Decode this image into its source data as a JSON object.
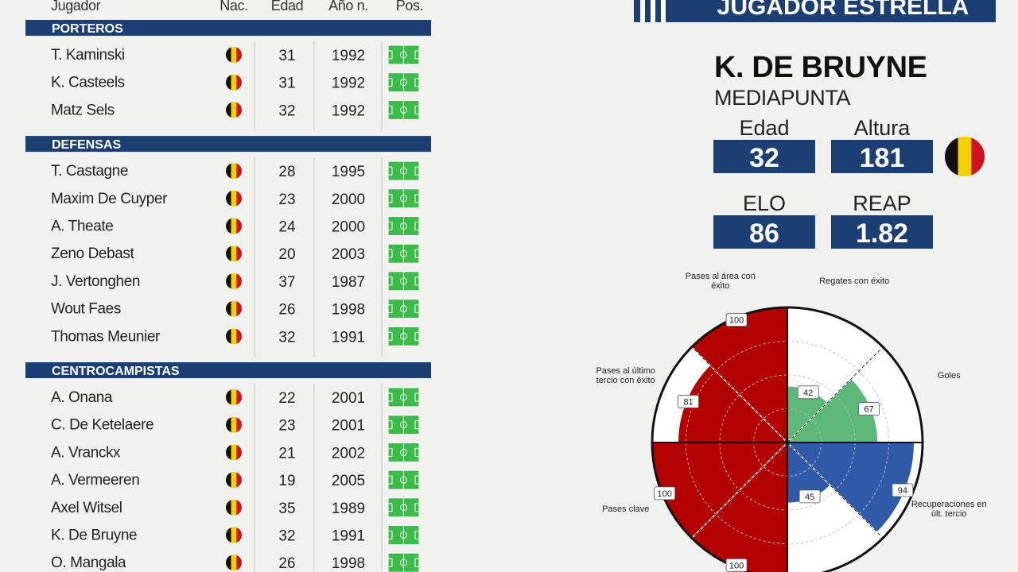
{
  "table": {
    "columns": [
      "Jugador",
      "Nac.",
      "Edad",
      "Año n.",
      "Pos."
    ],
    "sections": [
      {
        "title": "PORTEROS",
        "rows": [
          {
            "name": "T. Kaminski",
            "age": 31,
            "born": 1992
          },
          {
            "name": "K. Casteels",
            "age": 31,
            "born": 1992
          },
          {
            "name": "Matz Sels",
            "age": 32,
            "born": 1992
          }
        ]
      },
      {
        "title": "DEFENSAS",
        "rows": [
          {
            "name": "T. Castagne",
            "age": 28,
            "born": 1995
          },
          {
            "name": "Maxim De Cuyper",
            "age": 23,
            "born": 2000
          },
          {
            "name": "A. Theate",
            "age": 24,
            "born": 2000
          },
          {
            "name": "Zeno Debast",
            "age": 20,
            "born": 2003
          },
          {
            "name": "J. Vertonghen",
            "age": 37,
            "born": 1987
          },
          {
            "name": "Wout Faes",
            "age": 26,
            "born": 1998
          },
          {
            "name": "Thomas Meunier",
            "age": 32,
            "born": 1991
          }
        ]
      },
      {
        "title": "CENTROCAMPISTAS",
        "rows": [
          {
            "name": "A. Onana",
            "age": 22,
            "born": 2001
          },
          {
            "name": "C. De Ketelaere",
            "age": 23,
            "born": 2001
          },
          {
            "name": "A. Vranckx",
            "age": 21,
            "born": 2002
          },
          {
            "name": "A. Vermeeren",
            "age": 19,
            "born": 2005
          },
          {
            "name": "Axel Witsel",
            "age": 35,
            "born": 1989
          },
          {
            "name": "K. De Bruyne",
            "age": 32,
            "born": 1991
          },
          {
            "name": "O. Mangala",
            "age": 26,
            "born": 1998
          }
        ]
      }
    ]
  },
  "star": {
    "banner": "JUGADOR ESTRELLA",
    "name": "K. DE BRUYNE",
    "position": "MEDIAPUNTA",
    "stats": [
      {
        "label": "Edad",
        "value": 32
      },
      {
        "label": "Altura",
        "value": 181
      },
      {
        "label": "ELO",
        "value": 86
      },
      {
        "label": "REAP",
        "value": 1.82
      }
    ]
  },
  "chart_data": {
    "type": "polar",
    "categories": [
      "Regates con éxito",
      "Goles",
      "Recuperaciones en últ. tercio",
      null,
      null,
      "Pases clave",
      "Pases al último tercio con éxito",
      "Pases al área con éxito"
    ],
    "values": [
      42,
      67,
      94,
      45,
      100,
      100,
      81,
      100
    ],
    "colors": [
      "#5cb97a",
      "#5cb97a",
      "#2f5aa8",
      "#2f5aa8",
      "#b30000",
      "#b30000",
      "#b30000",
      "#b30000"
    ],
    "rlim": [
      0,
      100
    ],
    "rticks": [
      25,
      50,
      75
    ],
    "grid": true
  }
}
